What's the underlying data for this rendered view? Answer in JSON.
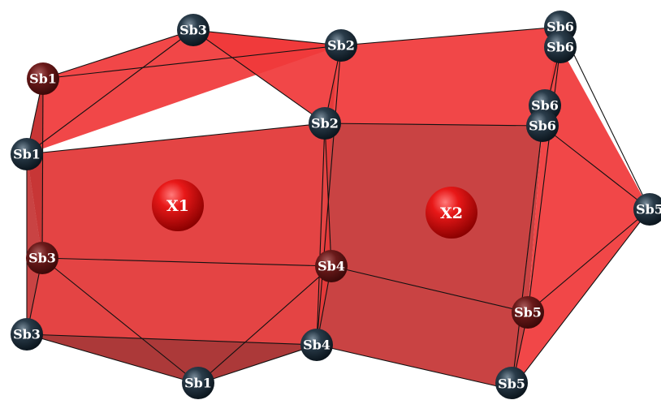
{
  "colors": {
    "polyhedron_light": "#f0393a",
    "polyhedron_dark": "#c53535",
    "antimony_atom": "#1b2c38",
    "center_atom": "#e01515",
    "edge": "#111111"
  },
  "diagram": {
    "centers": [
      {
        "id": "x1",
        "label": "X1"
      },
      {
        "id": "x2",
        "label": "X2"
      }
    ],
    "atoms": [
      {
        "id": "sb3_top",
        "label": "Sb3"
      },
      {
        "id": "sb2_top",
        "label": "Sb2"
      },
      {
        "id": "sb6_a",
        "label": "Sb6"
      },
      {
        "id": "sb6_b",
        "label": "Sb6"
      },
      {
        "id": "sb1_upper",
        "label": "Sb1"
      },
      {
        "id": "sb6_c",
        "label": "Sb6"
      },
      {
        "id": "sb2_mid",
        "label": "Sb2"
      },
      {
        "id": "sb6_d",
        "label": "Sb6"
      },
      {
        "id": "sb1_mid",
        "label": "Sb1"
      },
      {
        "id": "sb5_right",
        "label": "Sb5"
      },
      {
        "id": "sb3_mid",
        "label": "Sb3"
      },
      {
        "id": "sb4_mid",
        "label": "Sb4"
      },
      {
        "id": "sb5_mid",
        "label": "Sb5"
      },
      {
        "id": "sb3_low",
        "label": "Sb3"
      },
      {
        "id": "sb4_low",
        "label": "Sb4"
      },
      {
        "id": "sb1_bottom",
        "label": "Sb1"
      },
      {
        "id": "sb5_bottom",
        "label": "Sb5"
      }
    ]
  }
}
